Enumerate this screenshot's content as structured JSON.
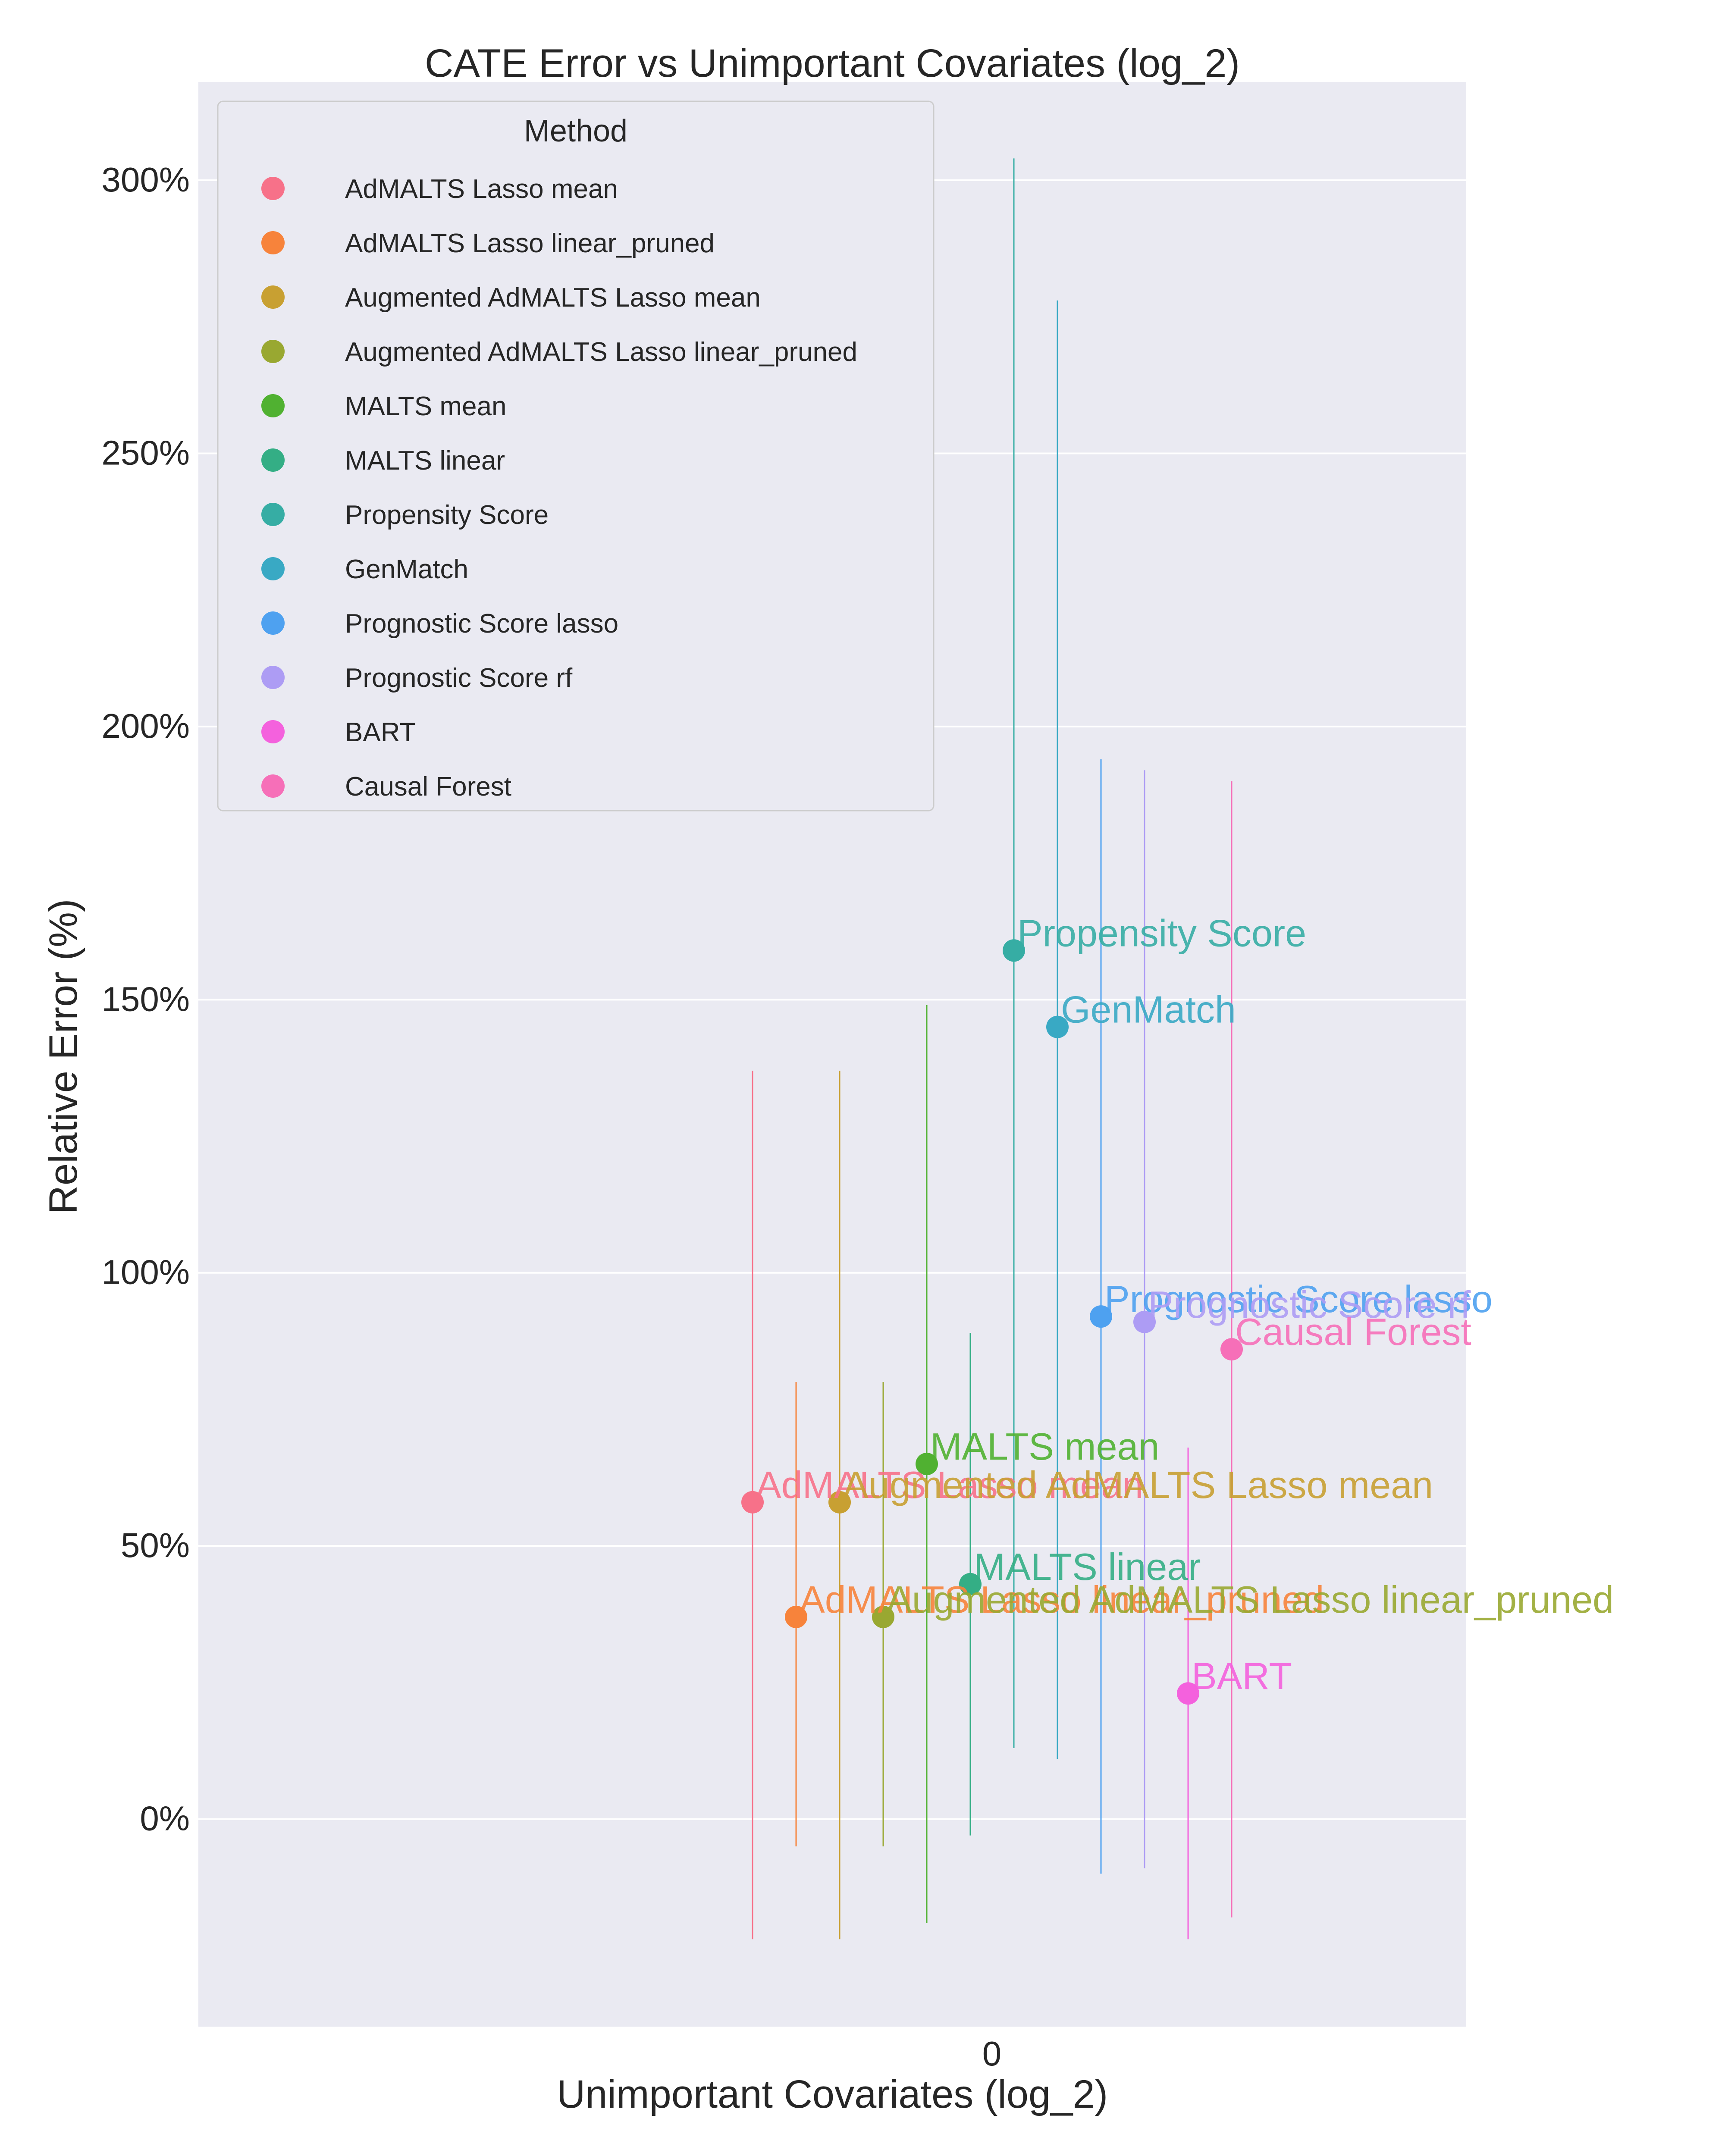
{
  "chart_data": {
    "type": "scatter",
    "title": "CATE Error vs Unimportant Covariates (log_2)",
    "xlabel": "Unimportant Covariates (log_2)",
    "ylabel": "Relative Error (%)",
    "x_ticks": [
      "0"
    ],
    "y_ticks": [
      "0%",
      "50%",
      "100%",
      "150%",
      "200%",
      "250%",
      "300%"
    ],
    "y_tick_values": [
      0,
      50,
      100,
      150,
      200,
      250,
      300
    ],
    "ylim": [
      -38,
      318
    ],
    "grid": true,
    "legend": {
      "title": "Method",
      "placement": "top-left"
    },
    "series": [
      {
        "name": "AdMALTS Lasso mean",
        "color": "#f77189",
        "x": 0,
        "y": 58,
        "err_low": -22,
        "err_high": 137
      },
      {
        "name": "AdMALTS Lasso linear_pruned",
        "color": "#f7833b",
        "x": 0,
        "y": 37,
        "err_low": -5,
        "err_high": 80
      },
      {
        "name": "Augmented AdMALTS Lasso mean",
        "color": "#c8a032",
        "x": 0,
        "y": 58,
        "err_low": -22,
        "err_high": 137
      },
      {
        "name": "Augmented AdMALTS Lasso linear_pruned",
        "color": "#99a831",
        "x": 0,
        "y": 37,
        "err_low": -5,
        "err_high": 80
      },
      {
        "name": "MALTS mean",
        "color": "#50b131",
        "x": 0,
        "y": 65,
        "err_low": -19,
        "err_high": 149
      },
      {
        "name": "MALTS linear",
        "color": "#34ae85",
        "x": 0,
        "y": 43,
        "err_low": -3,
        "err_high": 89
      },
      {
        "name": "Propensity Score",
        "color": "#36ada4",
        "x": 0,
        "y": 159,
        "err_low": 13,
        "err_high": 304
      },
      {
        "name": "GenMatch",
        "color": "#39a9c4",
        "x": 0,
        "y": 145,
        "err_low": 11,
        "err_high": 278
      },
      {
        "name": "Prognostic Score lasso",
        "color": "#4ea1f0",
        "x": 0,
        "y": 92,
        "err_low": -10,
        "err_high": 194
      },
      {
        "name": "Prognostic Score rf",
        "color": "#ad9cf4",
        "x": 0,
        "y": 91,
        "err_low": -9,
        "err_high": 192
      },
      {
        "name": "BART",
        "color": "#f461dd",
        "x": 0,
        "y": 23,
        "err_low": -22,
        "err_high": 68
      },
      {
        "name": "Causal Forest",
        "color": "#f66fb8",
        "x": 0,
        "y": 86,
        "err_low": -18,
        "err_high": 190
      }
    ]
  }
}
